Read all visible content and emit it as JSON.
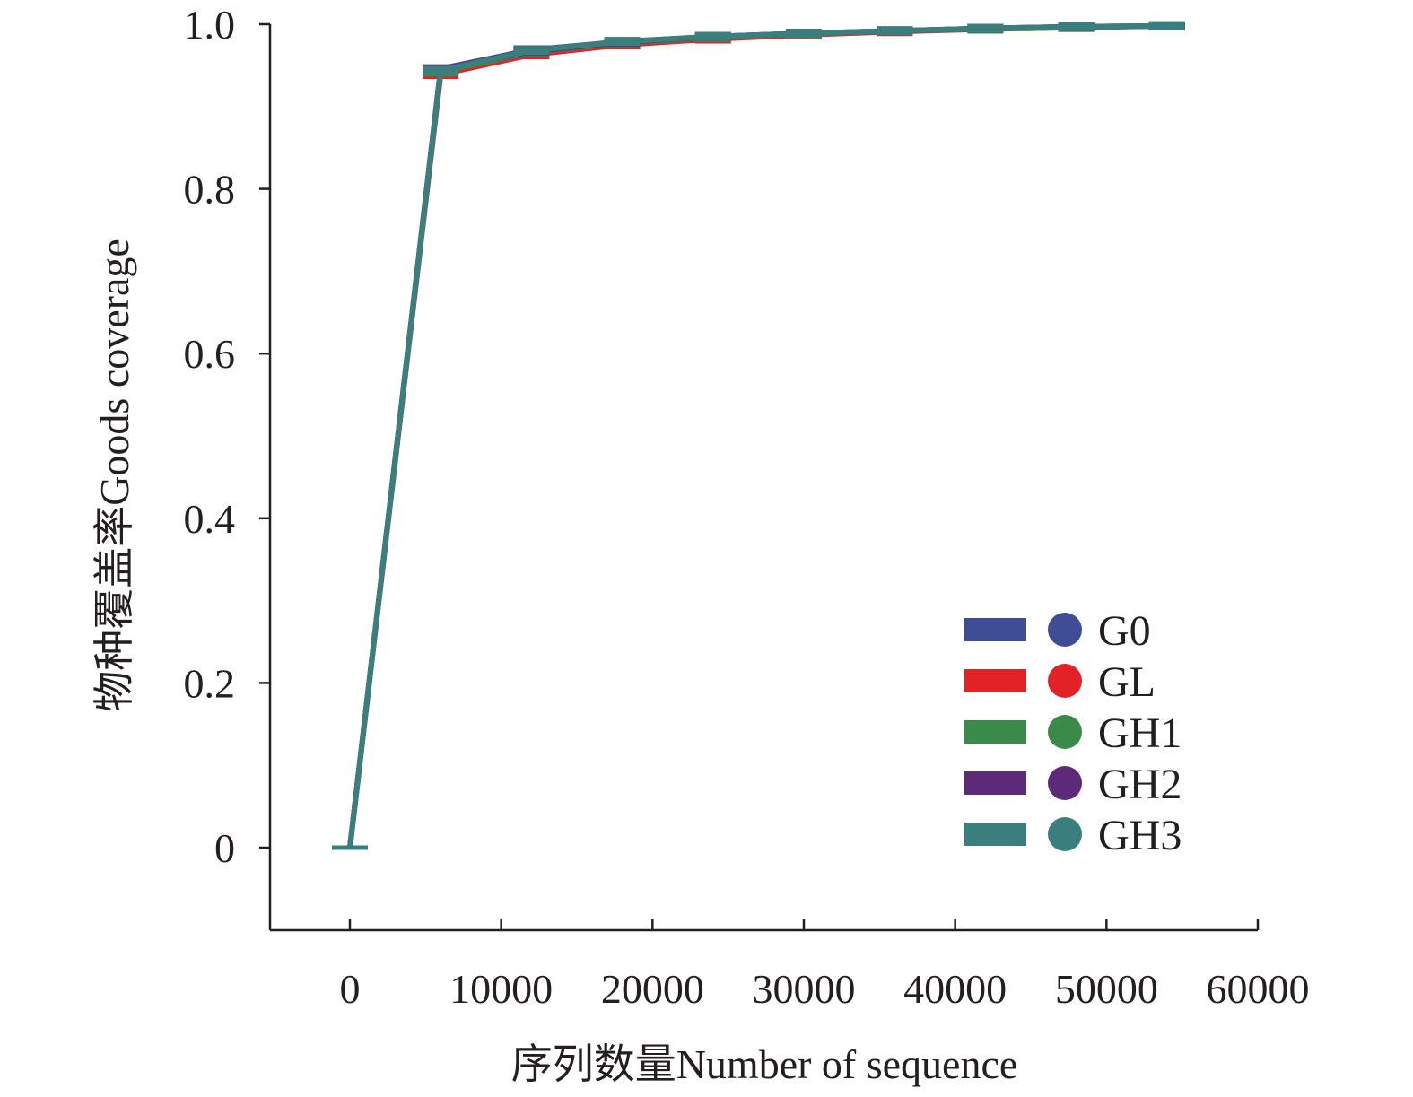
{
  "chart_data": {
    "type": "line",
    "title": "",
    "xlabel": "序列数量Number of sequence",
    "ylabel": "物种覆盖率Goods coverage",
    "xlim": [
      -5300,
      60000
    ],
    "ylim": [
      -0.1,
      1.0
    ],
    "xticks": [
      0,
      10000,
      20000,
      30000,
      40000,
      50000,
      60000
    ],
    "xtick_labels": [
      "0",
      "10000",
      "20000",
      "30000",
      "40000",
      "50000",
      "60000"
    ],
    "yticks": [
      0,
      0.2,
      0.4,
      0.6,
      0.8,
      1.0
    ],
    "ytick_labels": [
      "0",
      "0.2",
      "0.4",
      "0.6",
      "0.8",
      "1.0"
    ],
    "grid": false,
    "legend_position": "bottom-right",
    "x": [
      0,
      6000,
      12000,
      18000,
      24000,
      30000,
      36000,
      42000,
      48000,
      54000
    ],
    "series": [
      {
        "name": "G0",
        "color": "#3f4c96",
        "values": [
          0,
          0.946,
          0.969,
          0.979,
          0.985,
          0.989,
          0.992,
          0.995,
          0.997,
          0.998
        ]
      },
      {
        "name": "GL",
        "color": "#e32228",
        "values": [
          0,
          0.939,
          0.963,
          0.975,
          0.982,
          0.987,
          0.991,
          0.994,
          0.996,
          0.998
        ]
      },
      {
        "name": "GH1",
        "color": "#3a8b4a",
        "values": [
          0,
          0.942,
          0.966,
          0.977,
          0.984,
          0.988,
          0.992,
          0.994,
          0.996,
          0.998
        ]
      },
      {
        "name": "GH2",
        "color": "#5c2a78",
        "values": [
          0,
          0.945,
          0.967,
          0.978,
          0.985,
          0.989,
          0.992,
          0.995,
          0.997,
          0.998
        ]
      },
      {
        "name": "GH3",
        "color": "#3a7f7d",
        "values": [
          0,
          0.944,
          0.968,
          0.979,
          0.985,
          0.989,
          0.992,
          0.995,
          0.997,
          0.998
        ]
      }
    ]
  }
}
